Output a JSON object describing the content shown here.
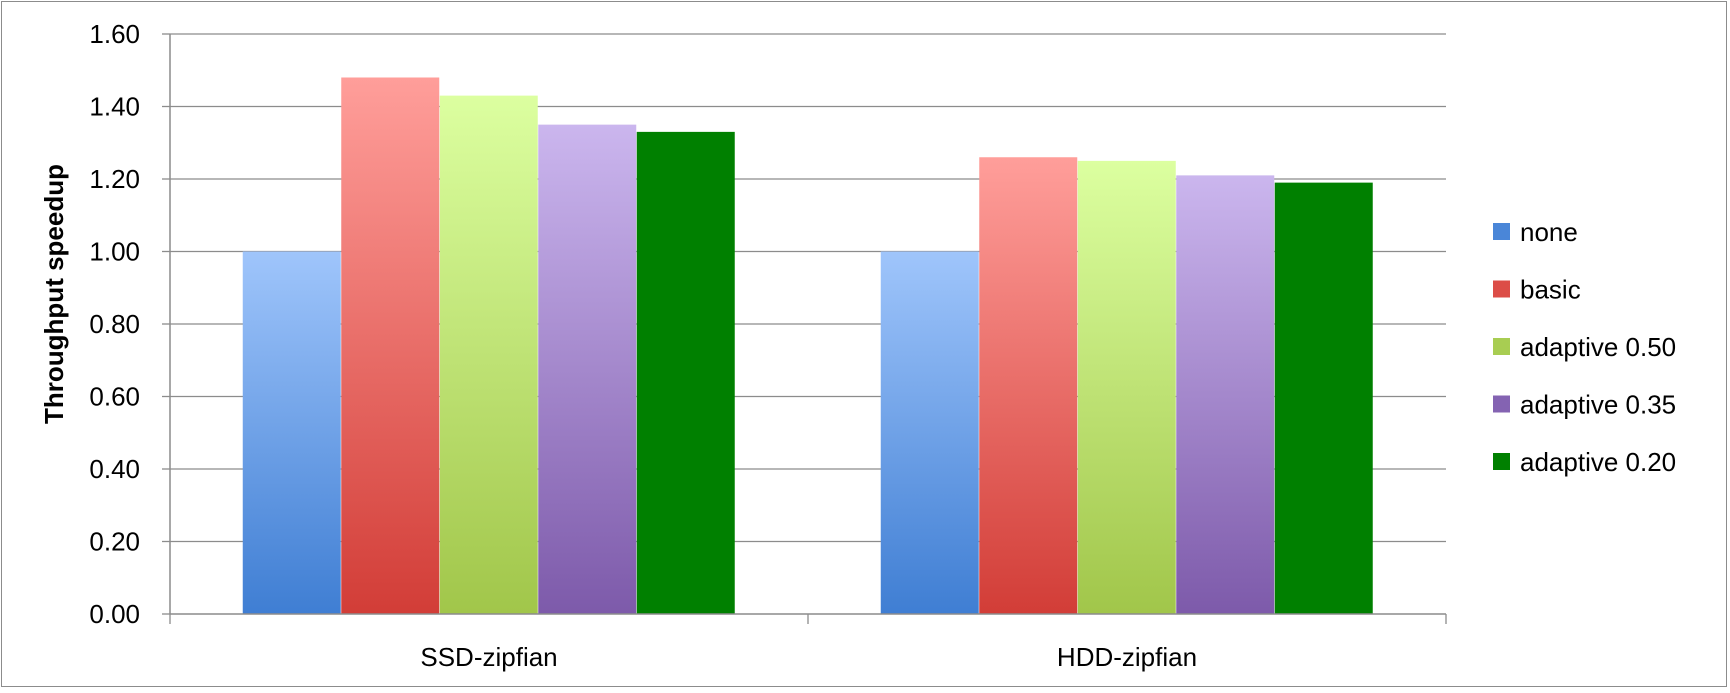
{
  "chart_data": {
    "type": "bar",
    "title": "",
    "xlabel": "",
    "ylabel": "Throughput speedup",
    "ylim": [
      0,
      1.6
    ],
    "yticks": [
      "0.00",
      "0.20",
      "0.40",
      "0.60",
      "0.80",
      "1.00",
      "1.20",
      "1.40",
      "1.60"
    ],
    "categories": [
      "SSD-zipfian",
      "HDD-zipfian"
    ],
    "series": [
      {
        "name": "none",
        "values": [
          1.0,
          1.0
        ],
        "color_top": "#9fc5fb",
        "color_bottom": "#3f7ed3",
        "legend_color": "#4a86d8"
      },
      {
        "name": "basic",
        "values": [
          1.48,
          1.26
        ],
        "color_top": "#ff9e9a",
        "color_bottom": "#d23d37",
        "legend_color": "#dc4d47"
      },
      {
        "name": "adaptive 0.50",
        "values": [
          1.43,
          1.25
        ],
        "color_top": "#dcffa0",
        "color_bottom": "#a1c64a",
        "legend_color": "#a8cd52"
      },
      {
        "name": "adaptive 0.35",
        "values": [
          1.35,
          1.21
        ],
        "color_top": "#cbb6ee",
        "color_bottom": "#7d5aaa",
        "legend_color": "#8463b2"
      },
      {
        "name": "adaptive 0.20",
        "values": [
          1.33,
          1.19
        ],
        "color_top": "#008000",
        "color_bottom": "#008000",
        "legend_color": "#008000"
      }
    ],
    "grid": true,
    "legend_position": "right"
  }
}
